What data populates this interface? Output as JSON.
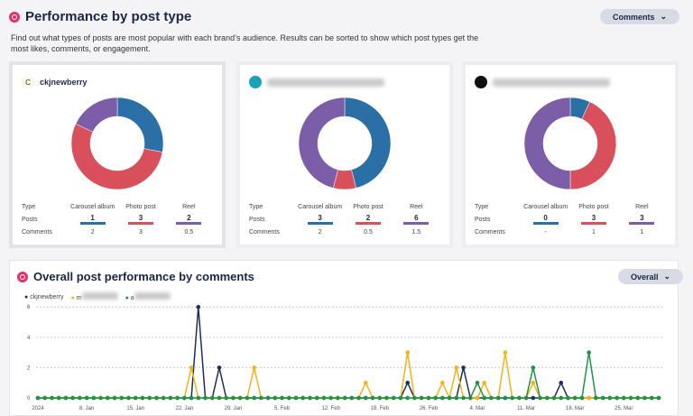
{
  "header": {
    "title": "Performance by post type",
    "description": "Find out what types of posts are most popular with each brand’s audience. Results can be sorted to show which post types get the most likes, comments, or engagement.",
    "sort_label": "Comments"
  },
  "colors": {
    "carousel": "#2a6fa6",
    "photo": "#d9505d",
    "reel": "#7b5ea7",
    "instagram": "#e1306c"
  },
  "table_labels": {
    "type": "Type",
    "posts": "Posts",
    "comments": "Comments"
  },
  "post_types": [
    "Carousel album",
    "Photo post",
    "Reel"
  ],
  "cards": [
    {
      "name": "ckjnewberry",
      "avatar_letter": "C",
      "name_blurred": false,
      "posts": [
        "1",
        "3",
        "2"
      ],
      "comments": [
        "2",
        "3",
        "0.5"
      ],
      "share": [
        0.28,
        0.54,
        0.18
      ]
    },
    {
      "name": "",
      "avatar_color": "#1aa3b8",
      "name_blurred": true,
      "posts": [
        "3",
        "2",
        "6"
      ],
      "comments": [
        "2",
        "0.5",
        "1.5"
      ],
      "share": [
        0.46,
        0.08,
        0.46
      ]
    },
    {
      "name": "",
      "avatar_color": "#111111",
      "name_blurred": true,
      "posts": [
        "0",
        "3",
        "3"
      ],
      "comments": [
        "-",
        "1",
        "1"
      ],
      "share": [
        0.07,
        0.43,
        0.5
      ]
    }
  ],
  "overall": {
    "title": "Overall post performance by comments",
    "filter_label": "Overall"
  },
  "chart_data": {
    "type": "line",
    "x_range": [
      "2024-01-01",
      "2024-03-30"
    ],
    "x_tick_labels": [
      "2024",
      "8. Jan",
      "15. Jan",
      "22. Jan",
      "29. Jan",
      "5. Feb",
      "12. Feb",
      "19. Feb",
      "26. Feb",
      "4. Mar",
      "11. Mar",
      "18. Mar",
      "25. Mar"
    ],
    "y_ticks": [
      0,
      2,
      4,
      6
    ],
    "ylim": [
      0,
      6
    ],
    "grid": true,
    "legend": "top-left",
    "series": [
      {
        "name": "ckjnewberry",
        "color": "#1e2f5e",
        "nonzero": {
          "2024-01-24": 6,
          "2024-01-27": 2,
          "2024-02-23": 1,
          "2024-03-02": 2,
          "2024-03-16": 1
        }
      },
      {
        "name": "m",
        "name_blurred": true,
        "color": "#f5b21b",
        "nonzero": {
          "2024-01-23": 2,
          "2024-02-01": 2,
          "2024-02-17": 1,
          "2024-02-23": 3,
          "2024-02-28": 1,
          "2024-03-01": 2,
          "2024-03-05": 1,
          "2024-03-08": 3,
          "2024-03-12": 1
        }
      },
      {
        "name": "a",
        "name_blurred": true,
        "color": "#1e9444",
        "nonzero": {
          "2024-03-04": 1,
          "2024-03-12": 2,
          "2024-03-20": 3
        }
      }
    ]
  }
}
